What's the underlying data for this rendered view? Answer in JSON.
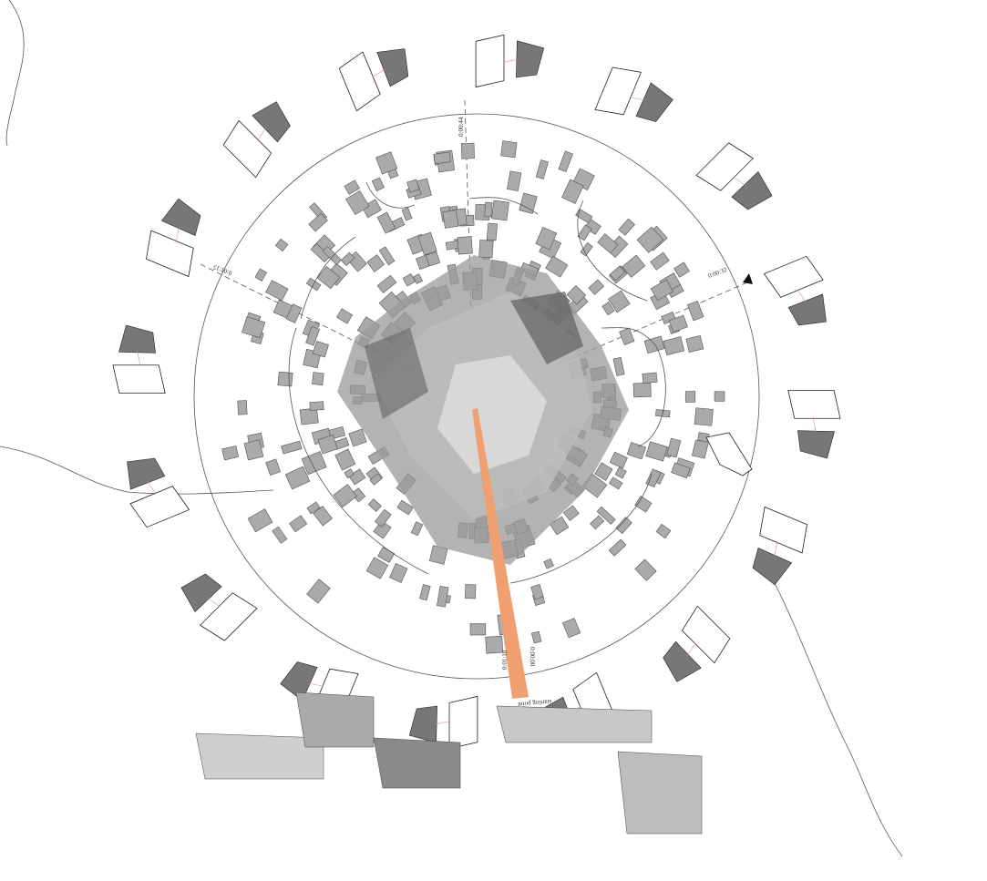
{
  "labels": {
    "top": "0:00:44",
    "left": "0:01:15",
    "right": "0:00:32",
    "bottom": "0:01:10",
    "start": "0:00:00",
    "start_note": "starting point"
  }
}
